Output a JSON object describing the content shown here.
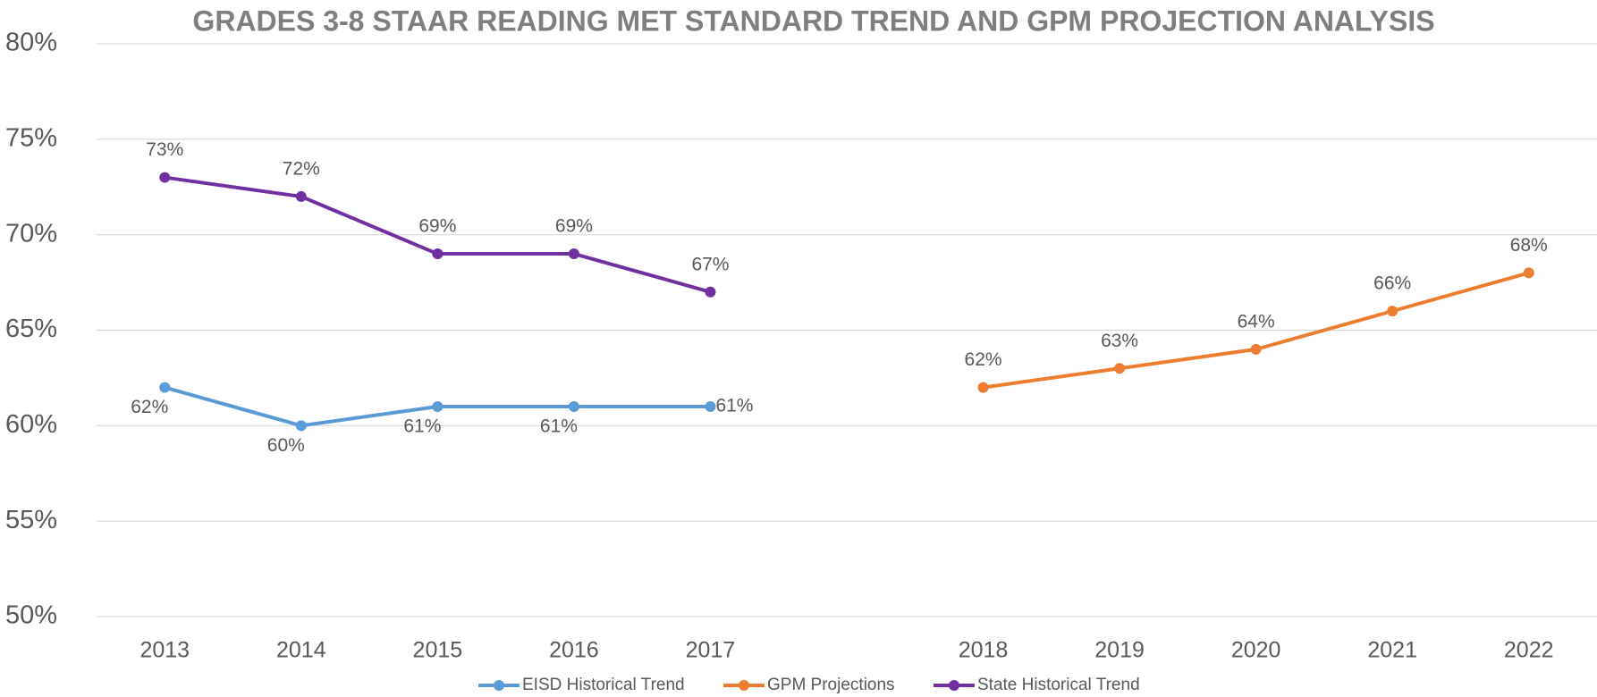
{
  "chart_data": {
    "type": "line",
    "title": "GRADES 3-8 STAAR READING MET STANDARD TREND AND GPM PROJECTION ANALYSIS",
    "categories": [
      "2013",
      "2014",
      "2015",
      "2016",
      "2017",
      null,
      "2018",
      "2019",
      "2020",
      "2021",
      "2022"
    ],
    "series": [
      {
        "name": "EISD Historical Trend",
        "color": "#5b9bd5",
        "values": [
          62,
          60,
          61,
          61,
          61,
          null,
          null,
          null,
          null,
          null,
          null
        ],
        "value_labels": [
          "62%",
          "60%",
          "61%",
          "61%",
          "61%",
          null,
          null,
          null,
          null,
          null,
          null
        ]
      },
      {
        "name": "GPM Projections",
        "color": "#ed7d31",
        "values": [
          null,
          null,
          null,
          null,
          null,
          null,
          62,
          63,
          64,
          66,
          68
        ],
        "value_labels": [
          null,
          null,
          null,
          null,
          null,
          null,
          "62%",
          "63%",
          "64%",
          "66%",
          "68%"
        ]
      },
      {
        "name": "State Historical Trend",
        "color": "#7030a0",
        "values": [
          73,
          72,
          69,
          69,
          67,
          null,
          null,
          null,
          null,
          null,
          null
        ],
        "value_labels": [
          "73%",
          "72%",
          "69%",
          "69%",
          "67%",
          null,
          null,
          null,
          null,
          null,
          null
        ]
      }
    ],
    "ylim": [
      50,
      80
    ],
    "yticks": [
      {
        "value": 50,
        "label": "50%"
      },
      {
        "value": 55,
        "label": "55%"
      },
      {
        "value": 60,
        "label": "60%"
      },
      {
        "value": 65,
        "label": "65%"
      },
      {
        "value": 70,
        "label": "70%"
      },
      {
        "value": 75,
        "label": "75%"
      },
      {
        "value": 80,
        "label": "80%"
      }
    ],
    "grid": true,
    "legend": "bottom"
  }
}
